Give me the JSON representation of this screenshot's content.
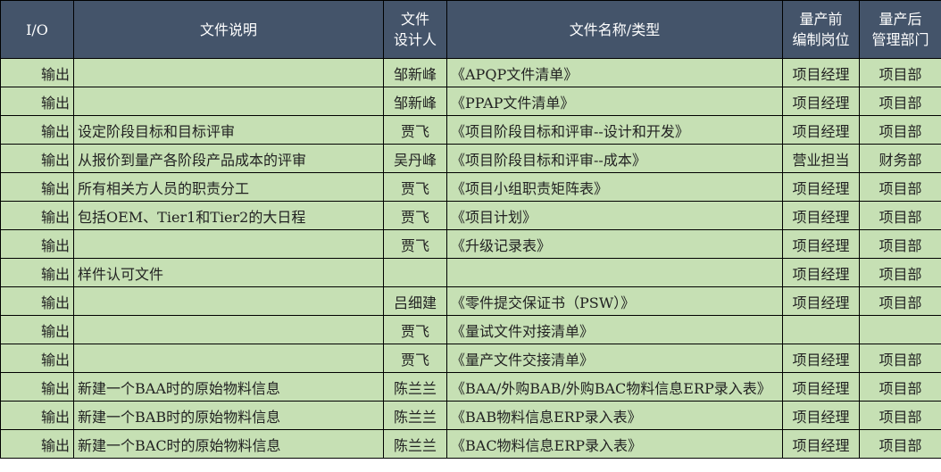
{
  "colors": {
    "header_bg": "#44546A",
    "header_text": "#FFFFFF",
    "row_bg": "#C6E0B4"
  },
  "headers": {
    "io": "I/O",
    "desc": "文件说明",
    "designer_1": "文件",
    "designer_2": "设计人",
    "name": "文件名称/类型",
    "pre_1": "量产前",
    "pre_2": "编制岗位",
    "post_1": "量产后",
    "post_2": "管理部门"
  },
  "rows": [
    {
      "io": "输出",
      "desc": "",
      "designer": "邹新峰",
      "name": "《APQP文件清单》",
      "pre": "项目经理",
      "post": "项目部"
    },
    {
      "io": "输出",
      "desc": "",
      "designer": "邹新峰",
      "name": "《PPAP文件清单》",
      "pre": "项目经理",
      "post": "项目部"
    },
    {
      "io": "输出",
      "desc": "设定阶段目标和目标评审",
      "designer": "贾飞",
      "name": "《项目阶段目标和评审--设计和开发》",
      "pre": "项目经理",
      "post": "项目部"
    },
    {
      "io": "输出",
      "desc": "从报价到量产各阶段产品成本的评审",
      "designer": "吴丹峰",
      "name": "《项目阶段目标和评审--成本》",
      "pre": "营业担当",
      "post": "财务部"
    },
    {
      "io": "输出",
      "desc": "所有相关方人员的职责分工",
      "designer": "贾飞",
      "name": "《项目小组职责矩阵表》",
      "pre": "项目经理",
      "post": "项目部"
    },
    {
      "io": "输出",
      "desc": "包括OEM、Tier1和Tier2的大日程",
      "designer": "贾飞",
      "name": "《项目计划》",
      "pre": "项目经理",
      "post": "项目部"
    },
    {
      "io": "输出",
      "desc": "",
      "designer": "贾飞",
      "name": "《升级记录表》",
      "pre": "项目经理",
      "post": "项目部"
    },
    {
      "io": "输出",
      "desc": "样件认可文件",
      "designer": "",
      "name": "",
      "pre": "项目经理",
      "post": "项目部"
    },
    {
      "io": "输出",
      "desc": "",
      "designer": "吕细建",
      "name": "《零件提交保证书（PSW）》",
      "pre": "项目经理",
      "post": "项目部"
    },
    {
      "io": "输出",
      "desc": "",
      "designer": "贾飞",
      "name": "《量试文件对接清单》",
      "pre": "",
      "post": ""
    },
    {
      "io": "输出",
      "desc": "",
      "designer": "贾飞",
      "name": "《量产文件交接清单》",
      "pre": "项目经理",
      "post": "项目部"
    },
    {
      "io": "输出",
      "desc": "新建一个BAA时的原始物料信息",
      "designer": "陈兰兰",
      "name": "《BAA/外购BAB/外购BAC物料信息ERP录入表》",
      "pre": "项目经理",
      "post": "项目部"
    },
    {
      "io": "输出",
      "desc": "新建一个BAB时的原始物料信息",
      "designer": "陈兰兰",
      "name": "《BAB物料信息ERP录入表》",
      "pre": "项目经理",
      "post": "项目部"
    },
    {
      "io": "输出",
      "desc": "新建一个BAC时的原始物料信息",
      "designer": "陈兰兰",
      "name": "《BAC物料信息ERP录入表》",
      "pre": "项目经理",
      "post": "项目部"
    }
  ]
}
